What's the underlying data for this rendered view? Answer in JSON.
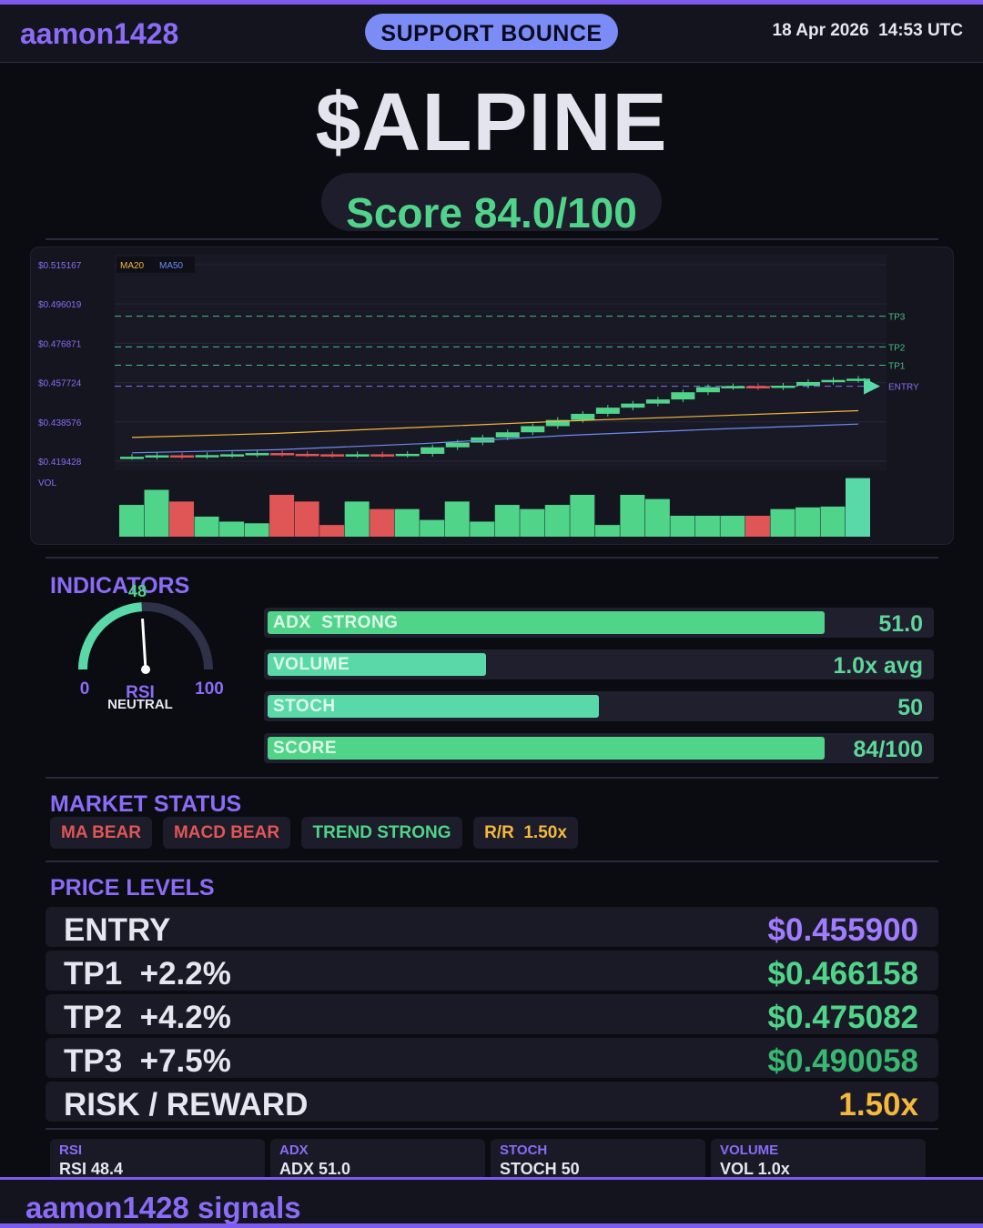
{
  "header": {
    "brand": "aamon1428",
    "signal": "SUPPORT BOUNCE",
    "datetime": "18 Apr 2026  14:53 UTC"
  },
  "ticker": "$ALPINE",
  "score_label": "Score 84.0/100",
  "chart_data": {
    "type": "candlestick",
    "y_ticks": [
      "$0.515167",
      "$0.496019",
      "$0.476871",
      "$0.457724",
      "$0.438576",
      "$0.419428"
    ],
    "ylim": [
      0.415,
      0.52
    ],
    "legend": [
      "MA20",
      "MA50"
    ],
    "levels": [
      {
        "name": "TP3",
        "value": 0.490058
      },
      {
        "name": "TP2",
        "value": 0.475082
      },
      {
        "name": "TP1",
        "value": 0.466158
      },
      {
        "name": "ENTRY",
        "value": 0.4559
      }
    ],
    "volume_label": "VOL",
    "candles": [
      [
        0.4215,
        0.4216
      ],
      [
        0.4216,
        0.4223
      ],
      [
        0.4223,
        0.4218
      ],
      [
        0.4218,
        0.4224
      ],
      [
        0.4224,
        0.4228
      ],
      [
        0.4228,
        0.4234
      ],
      [
        0.4234,
        0.423
      ],
      [
        0.423,
        0.4228
      ],
      [
        0.4228,
        0.4224
      ],
      [
        0.4224,
        0.4228
      ],
      [
        0.4228,
        0.4225
      ],
      [
        0.4225,
        0.423
      ],
      [
        0.423,
        0.4262
      ],
      [
        0.4262,
        0.4285
      ],
      [
        0.4285,
        0.431
      ],
      [
        0.431,
        0.4335
      ],
      [
        0.4335,
        0.4365
      ],
      [
        0.4365,
        0.4395
      ],
      [
        0.4395,
        0.4425
      ],
      [
        0.4425,
        0.4455
      ],
      [
        0.4455,
        0.4475
      ],
      [
        0.4475,
        0.4495
      ],
      [
        0.4495,
        0.453
      ],
      [
        0.453,
        0.4555
      ],
      [
        0.4555,
        0.456
      ],
      [
        0.456,
        0.4554
      ],
      [
        0.4554,
        0.4562
      ],
      [
        0.4562,
        0.458
      ],
      [
        0.458,
        0.459
      ],
      [
        0.459,
        0.4596
      ]
    ],
    "ma20": [
      0.431,
      0.433,
      0.436,
      0.439,
      0.4415,
      0.444
    ],
    "ma50": [
      0.4235,
      0.425,
      0.428,
      0.432,
      0.435,
      0.4375
    ],
    "volume": [
      0.38,
      0.56,
      0.42,
      0.24,
      0.18,
      0.16,
      0.5,
      0.42,
      0.14,
      0.42,
      0.33,
      0.33,
      0.2,
      0.42,
      0.18,
      0.38,
      0.33,
      0.38,
      0.5,
      0.14,
      0.5,
      0.45,
      0.25,
      0.25,
      0.25,
      0.25,
      0.33,
      0.35,
      0.36,
      0.7
    ]
  },
  "indicators": {
    "title": "INDICATORS",
    "gauge": {
      "value": 48,
      "value_text": "48",
      "min": "0",
      "max": "100",
      "name": "RSI",
      "state": "NEUTRAL"
    },
    "bars": [
      {
        "label": "ADX  STRONG",
        "value": "51.0",
        "fill": 0.84,
        "color": "#4fd489"
      },
      {
        "label": "VOLUME",
        "value": "1.0x avg",
        "fill": 0.33,
        "color": "#5ad9a8"
      },
      {
        "label": "STOCH",
        "value": "50",
        "fill": 0.5,
        "color": "#5ad9a8"
      },
      {
        "label": "SCORE",
        "value": "84/100",
        "fill": 0.84,
        "color": "#4fd489"
      }
    ]
  },
  "market_status": {
    "title": "MARKET STATUS",
    "chips": [
      {
        "label": "MA BEAR",
        "color": "#e05656"
      },
      {
        "label": "MACD BEAR",
        "color": "#e05656"
      },
      {
        "label": "TREND STRONG",
        "color": "#4fd489"
      },
      {
        "label": "R/R  1.50x",
        "color": "#f5b83d"
      }
    ]
  },
  "price_levels": {
    "title": "PRICE LEVELS",
    "rows": [
      {
        "name": "ENTRY",
        "price": "$0.455900",
        "color": "#a07cff"
      },
      {
        "name": "TP1  +2.2%",
        "price": "$0.466158",
        "color": "#4fd489"
      },
      {
        "name": "TP2  +4.2%",
        "price": "$0.475082",
        "color": "#4fd489"
      },
      {
        "name": "TP3  +7.5%",
        "price": "$0.490058",
        "color": "#38b870"
      },
      {
        "name": "RISK / REWARD",
        "price": "1.50x",
        "color": "#f5b83d"
      }
    ]
  },
  "mini_stats": [
    {
      "label": "RSI",
      "value": "RSI 48.4"
    },
    {
      "label": "ADX",
      "value": "ADX 51.0"
    },
    {
      "label": "STOCH",
      "value": "STOCH 50"
    },
    {
      "label": "VOLUME",
      "value": "VOL 1.0x"
    }
  ],
  "footer": "aamon1428 signals"
}
